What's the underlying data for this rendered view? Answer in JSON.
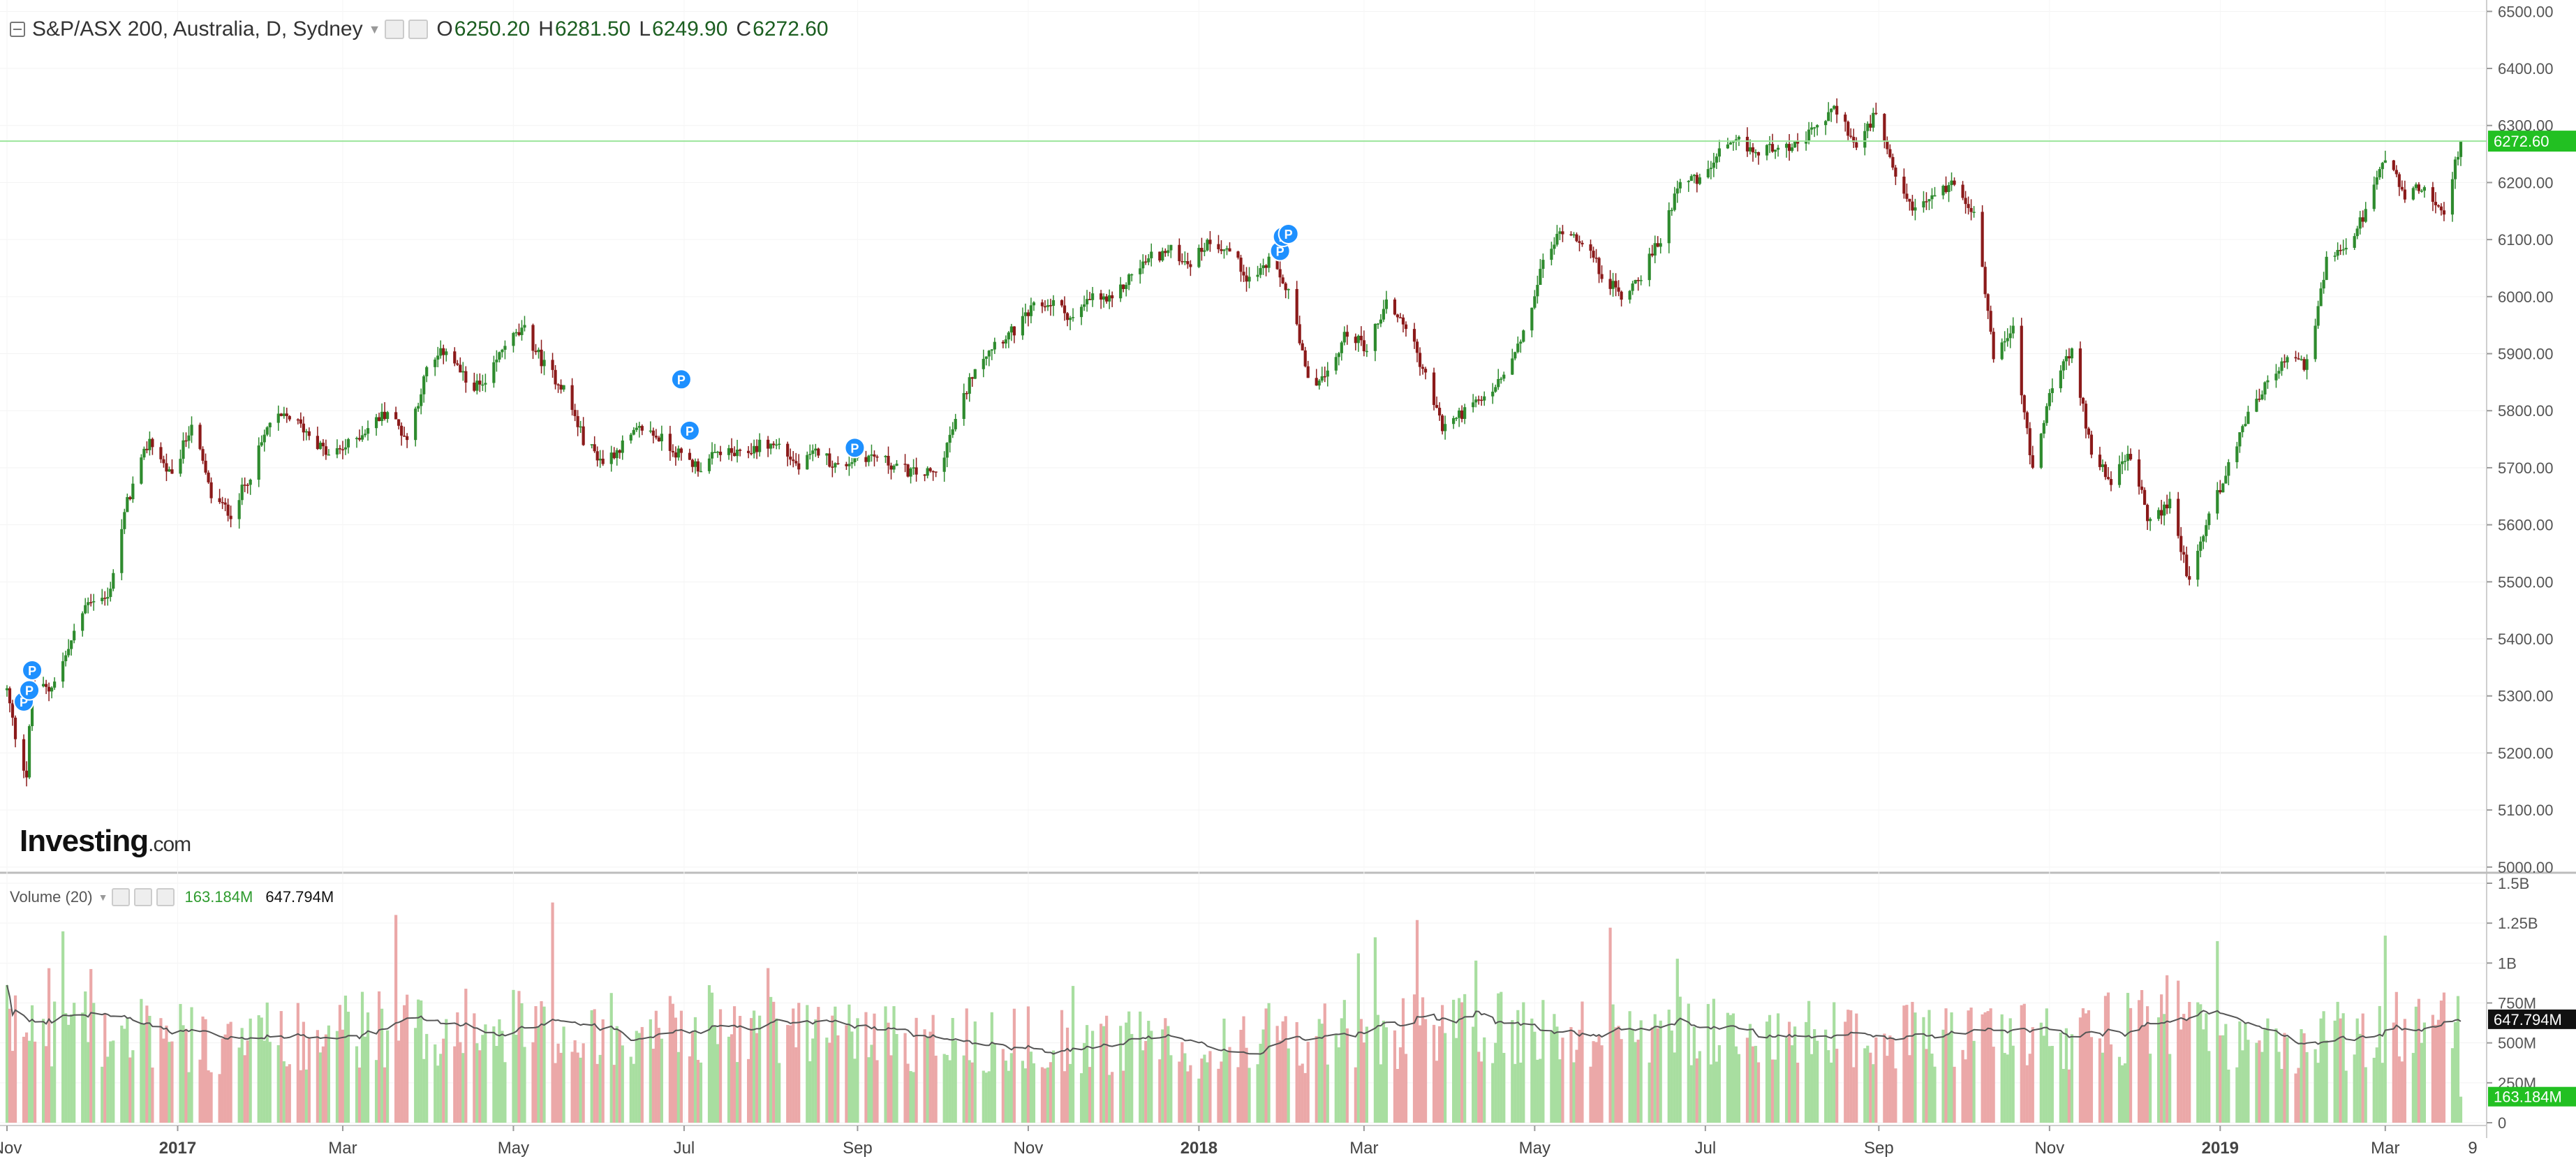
{
  "legend": {
    "symbol": "S&P/ASX 200, Australia, D, Sydney",
    "open_label": "O",
    "open": "6250.20",
    "high_label": "H",
    "high": "6281.50",
    "low_label": "L",
    "low": "6249.90",
    "close_label": "C",
    "close": "6272.60"
  },
  "volume_legend": {
    "title": "Volume (20)",
    "value": "163.184M",
    "ma_value": "647.794M"
  },
  "logo": {
    "main": "Investing",
    "suffix": ".com"
  },
  "colors": {
    "up": "#2e8b2e",
    "down": "#8b1a1a",
    "vol_up": "#a8dea0",
    "vol_down": "#eba8a8",
    "last_price_line": "#9be59b",
    "last_price_tag": "#22c022",
    "ma_line": "#555555",
    "marker": "#1e90ff"
  },
  "chart_data": {
    "type": "candlestick",
    "price_axis": {
      "ylim": [
        4990,
        6520
      ],
      "ticks": [
        5000,
        5100,
        5200,
        5300,
        5400,
        5500,
        5600,
        5700,
        5800,
        5900,
        6000,
        6100,
        6200,
        6300,
        6400,
        6500
      ],
      "tick_labels": [
        "5000.00",
        "5100.00",
        "5200.00",
        "5300.00",
        "5400.00",
        "5500.00",
        "5600.00",
        "5700.00",
        "5800.00",
        "5900.00",
        "6000.00",
        "6100.00",
        "6200.00",
        "6300.00",
        "6400.00",
        "6500.00"
      ],
      "last_price": 6272.6,
      "last_price_label": "6272.60"
    },
    "volume_axis": {
      "ylim": [
        0,
        1.5
      ],
      "ticks": [
        0,
        0.25,
        0.5,
        0.75,
        1.0,
        1.25,
        1.5
      ],
      "tick_labels": [
        "0",
        "250M",
        "500M",
        "750M",
        "1B",
        "1.25B",
        "1.5B"
      ],
      "last_volume": 0.163184,
      "last_volume_label": "163.184M",
      "ma_last": 0.647794,
      "ma_last_label": "647.794M"
    },
    "x_axis": {
      "start": "2016-11-01",
      "end": "2019-03-28",
      "ticks": [
        {
          "date": "2016-11-01",
          "label": "Nov",
          "bold": false
        },
        {
          "date": "2017-01-01",
          "label": "2017",
          "bold": true
        },
        {
          "date": "2017-03-01",
          "label": "Mar",
          "bold": false
        },
        {
          "date": "2017-05-01",
          "label": "May",
          "bold": false
        },
        {
          "date": "2017-07-01",
          "label": "Jul",
          "bold": false
        },
        {
          "date": "2017-09-01",
          "label": "Sep",
          "bold": false
        },
        {
          "date": "2017-11-01",
          "label": "Nov",
          "bold": false
        },
        {
          "date": "2018-01-01",
          "label": "2018",
          "bold": true
        },
        {
          "date": "2018-03-01",
          "label": "Mar",
          "bold": false
        },
        {
          "date": "2018-05-01",
          "label": "May",
          "bold": false
        },
        {
          "date": "2018-07-01",
          "label": "Jul",
          "bold": false
        },
        {
          "date": "2018-09-01",
          "label": "Sep",
          "bold": false
        },
        {
          "date": "2018-11-01",
          "label": "Nov",
          "bold": false
        },
        {
          "date": "2019-01-01",
          "label": "2019",
          "bold": true
        },
        {
          "date": "2019-03-01",
          "label": "Mar",
          "bold": false
        }
      ],
      "extra_label": "9"
    },
    "close_path": [
      [
        "2016-11-01",
        5310
      ],
      [
        "2016-11-04",
        5230
      ],
      [
        "2016-11-08",
        5160
      ],
      [
        "2016-11-10",
        5320
      ],
      [
        "2016-11-16",
        5310
      ],
      [
        "2016-11-22",
        5370
      ],
      [
        "2016-11-30",
        5470
      ],
      [
        "2016-12-07",
        5470
      ],
      [
        "2016-12-14",
        5640
      ],
      [
        "2016-12-22",
        5750
      ],
      [
        "2016-12-30",
        5680
      ],
      [
        "2017-01-06",
        5780
      ],
      [
        "2017-01-13",
        5650
      ],
      [
        "2017-01-20",
        5620
      ],
      [
        "2017-01-27",
        5690
      ],
      [
        "2017-02-03",
        5780
      ],
      [
        "2017-02-10",
        5790
      ],
      [
        "2017-02-17",
        5760
      ],
      [
        "2017-02-24",
        5720
      ],
      [
        "2017-03-03",
        5740
      ],
      [
        "2017-03-10",
        5770
      ],
      [
        "2017-03-17",
        5800
      ],
      [
        "2017-03-24",
        5750
      ],
      [
        "2017-03-31",
        5870
      ],
      [
        "2017-04-07",
        5910
      ],
      [
        "2017-04-14",
        5850
      ],
      [
        "2017-04-21",
        5840
      ],
      [
        "2017-04-28",
        5920
      ],
      [
        "2017-05-05",
        5940
      ],
      [
        "2017-05-12",
        5880
      ],
      [
        "2017-05-19",
        5840
      ],
      [
        "2017-05-26",
        5750
      ],
      [
        "2017-06-02",
        5710
      ],
      [
        "2017-06-09",
        5740
      ],
      [
        "2017-06-16",
        5770
      ],
      [
        "2017-06-23",
        5750
      ],
      [
        "2017-06-30",
        5720
      ],
      [
        "2017-07-07",
        5700
      ],
      [
        "2017-07-14",
        5730
      ],
      [
        "2017-07-21",
        5720
      ],
      [
        "2017-07-28",
        5740
      ],
      [
        "2017-08-04",
        5740
      ],
      [
        "2017-08-11",
        5700
      ],
      [
        "2017-08-18",
        5730
      ],
      [
        "2017-08-25",
        5700
      ],
      [
        "2017-09-01",
        5720
      ],
      [
        "2017-09-08",
        5720
      ],
      [
        "2017-09-15",
        5700
      ],
      [
        "2017-09-22",
        5690
      ],
      [
        "2017-09-29",
        5690
      ],
      [
        "2017-10-06",
        5780
      ],
      [
        "2017-10-13",
        5880
      ],
      [
        "2017-10-20",
        5920
      ],
      [
        "2017-10-27",
        5940
      ],
      [
        "2017-11-03",
        5980
      ],
      [
        "2017-11-10",
        5990
      ],
      [
        "2017-11-17",
        5960
      ],
      [
        "2017-11-24",
        6000
      ],
      [
        "2017-12-01",
        5990
      ],
      [
        "2017-12-08",
        6040
      ],
      [
        "2017-12-15",
        6070
      ],
      [
        "2017-12-22",
        6080
      ],
      [
        "2017-12-29",
        6060
      ],
      [
        "2018-01-05",
        6100
      ],
      [
        "2018-01-12",
        6080
      ],
      [
        "2018-01-19",
        6030
      ],
      [
        "2018-01-26",
        6060
      ],
      [
        "2018-02-02",
        6010
      ],
      [
        "2018-02-09",
        5850
      ],
      [
        "2018-02-16",
        5860
      ],
      [
        "2018-02-23",
        5940
      ],
      [
        "2018-03-02",
        5910
      ],
      [
        "2018-03-09",
        5990
      ],
      [
        "2018-03-16",
        5950
      ],
      [
        "2018-03-23",
        5860
      ],
      [
        "2018-03-29",
        5770
      ],
      [
        "2018-04-06",
        5800
      ],
      [
        "2018-04-13",
        5820
      ],
      [
        "2018-04-20",
        5860
      ],
      [
        "2018-04-27",
        5930
      ],
      [
        "2018-05-04",
        6060
      ],
      [
        "2018-05-11",
        6120
      ],
      [
        "2018-05-18",
        6100
      ],
      [
        "2018-05-25",
        6040
      ],
      [
        "2018-06-01",
        6000
      ],
      [
        "2018-06-08",
        6040
      ],
      [
        "2018-06-15",
        6100
      ],
      [
        "2018-06-22",
        6210
      ],
      [
        "2018-06-29",
        6200
      ],
      [
        "2018-07-06",
        6250
      ],
      [
        "2018-07-13",
        6270
      ],
      [
        "2018-07-20",
        6250
      ],
      [
        "2018-07-27",
        6270
      ],
      [
        "2018-08-03",
        6260
      ],
      [
        "2018-08-10",
        6300
      ],
      [
        "2018-08-17",
        6330
      ],
      [
        "2018-08-24",
        6260
      ],
      [
        "2018-08-31",
        6320
      ],
      [
        "2018-09-07",
        6200
      ],
      [
        "2018-09-14",
        6150
      ],
      [
        "2018-09-21",
        6180
      ],
      [
        "2018-09-28",
        6200
      ],
      [
        "2018-10-05",
        6150
      ],
      [
        "2018-10-12",
        5900
      ],
      [
        "2018-10-19",
        5940
      ],
      [
        "2018-10-26",
        5690
      ],
      [
        "2018-11-02",
        5850
      ],
      [
        "2018-11-09",
        5900
      ],
      [
        "2018-11-16",
        5730
      ],
      [
        "2018-11-23",
        5680
      ],
      [
        "2018-11-30",
        5720
      ],
      [
        "2018-12-07",
        5600
      ],
      [
        "2018-12-14",
        5640
      ],
      [
        "2018-12-21",
        5500
      ],
      [
        "2018-12-28",
        5620
      ],
      [
        "2019-01-04",
        5700
      ],
      [
        "2019-01-11",
        5800
      ],
      [
        "2019-01-18",
        5850
      ],
      [
        "2019-01-25",
        5890
      ],
      [
        "2019-02-01",
        5880
      ],
      [
        "2019-02-08",
        6060
      ],
      [
        "2019-02-15",
        6080
      ],
      [
        "2019-02-22",
        6150
      ],
      [
        "2019-03-01",
        6240
      ],
      [
        "2019-03-08",
        6180
      ],
      [
        "2019-03-15",
        6190
      ],
      [
        "2019-03-22",
        6150
      ],
      [
        "2019-03-28",
        6272.6
      ]
    ],
    "volume_profile": [
      [
        "2016-11-01",
        0.64
      ],
      [
        "2016-12-15",
        0.63
      ],
      [
        "2017-01-15",
        0.52
      ],
      [
        "2017-03-01",
        0.62
      ],
      [
        "2017-05-01",
        0.64
      ],
      [
        "2017-07-01",
        0.65
      ],
      [
        "2017-09-01",
        0.58
      ],
      [
        "2017-11-01",
        0.55
      ],
      [
        "2018-01-01",
        0.5
      ],
      [
        "2018-03-01",
        0.6
      ],
      [
        "2018-05-01",
        0.61
      ],
      [
        "2018-07-01",
        0.6
      ],
      [
        "2018-09-01",
        0.56
      ],
      [
        "2018-11-01",
        0.57
      ],
      [
        "2018-12-20",
        0.72
      ],
      [
        "2019-01-20",
        0.47
      ],
      [
        "2019-03-01",
        0.64
      ],
      [
        "2019-03-28",
        0.64
      ]
    ],
    "markers": [
      {
        "date": "2016-11-07",
        "price": 5290,
        "label": "P"
      },
      {
        "date": "2016-11-09",
        "price": 5310,
        "label": "P"
      },
      {
        "date": "2016-11-10",
        "price": 5345,
        "label": "P"
      },
      {
        "date": "2017-06-30",
        "price": 5855,
        "label": "P"
      },
      {
        "date": "2017-07-03",
        "price": 5765,
        "label": "P"
      },
      {
        "date": "2017-08-31",
        "price": 5735,
        "label": "P"
      },
      {
        "date": "2018-01-30",
        "price": 6080,
        "label": "P"
      },
      {
        "date": "2018-01-31",
        "price": 6105,
        "label": "P"
      },
      {
        "date": "2018-02-02",
        "price": 6110,
        "label": "P"
      }
    ]
  }
}
